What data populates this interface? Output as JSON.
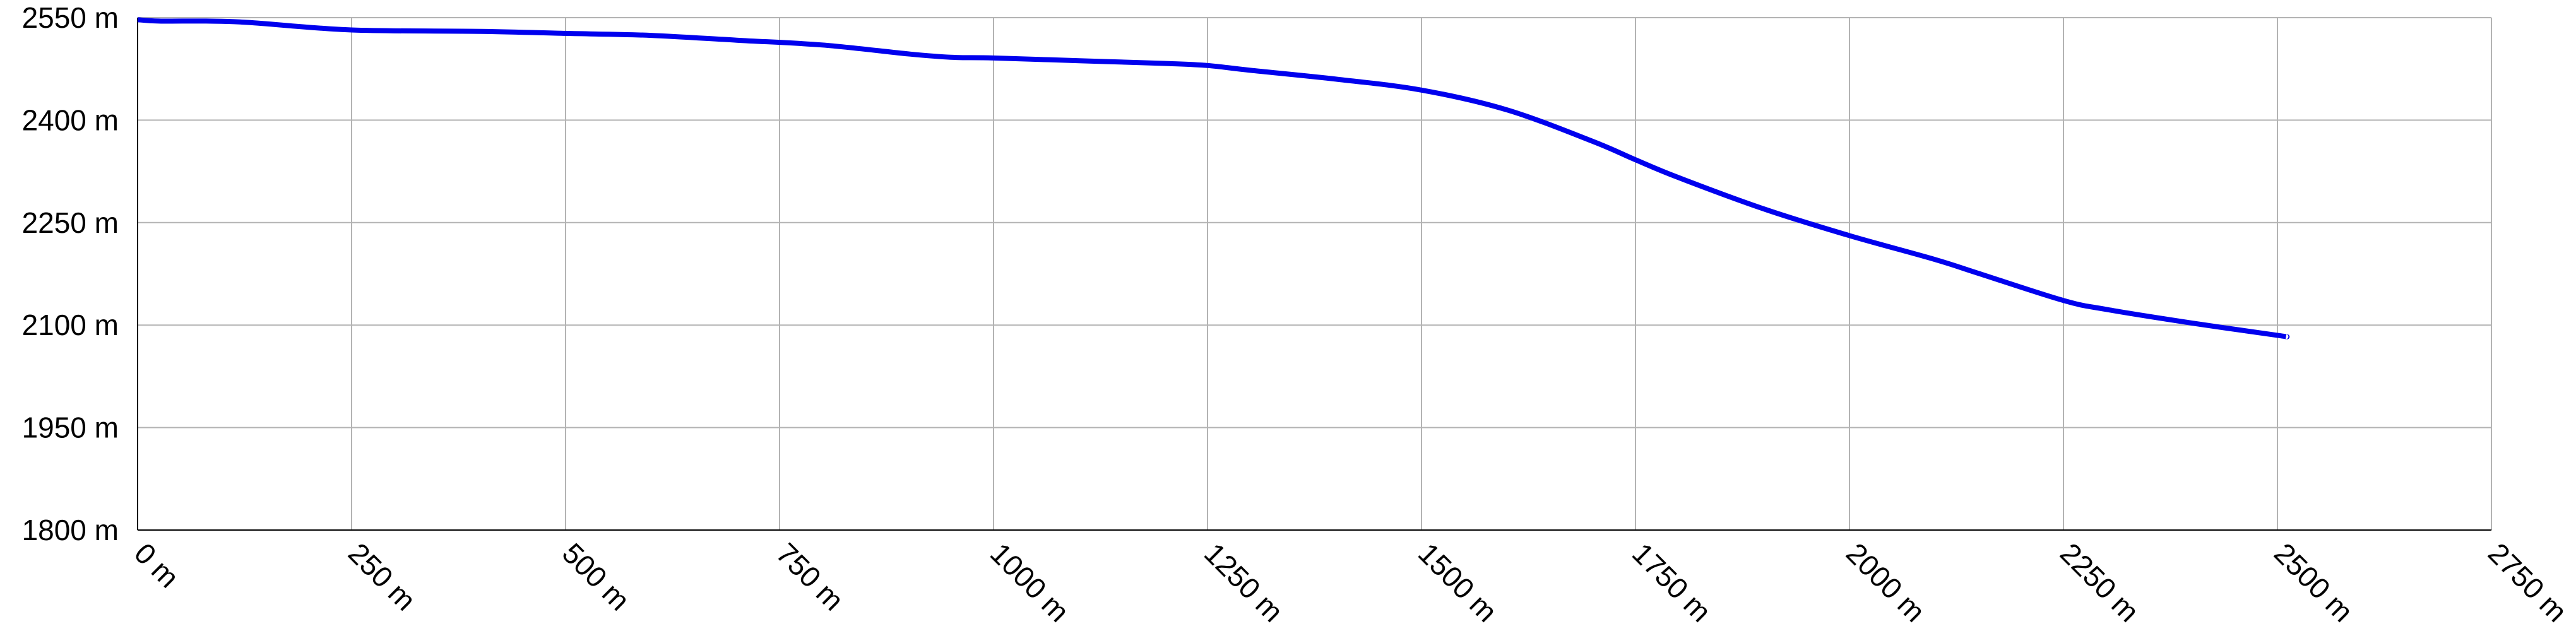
{
  "chart_data": {
    "type": "line",
    "title": "",
    "xlabel": "",
    "ylabel": "",
    "x_unit": "m",
    "y_unit": "m",
    "xlim": [
      0,
      2750
    ],
    "ylim": [
      1800,
      2550
    ],
    "x_ticks": [
      "0 m",
      "250 m",
      "500 m",
      "750 m",
      "1000 m",
      "1250 m",
      "1500 m",
      "1750 m",
      "2000 m",
      "2250 m",
      "2500 m",
      "2750 m"
    ],
    "y_ticks": [
      "1800 m",
      "1950 m",
      "2100 m",
      "2250 m",
      "2400 m",
      "2550 m"
    ],
    "x_tick_values": [
      0,
      250,
      500,
      750,
      1000,
      1250,
      1500,
      1750,
      2000,
      2250,
      2500,
      2750
    ],
    "y_tick_values": [
      1800,
      1950,
      2100,
      2250,
      2400,
      2550
    ],
    "grid": true,
    "colors": {
      "line": "#0000ee",
      "grid": "#b3b3b3",
      "axis": "#000000"
    },
    "series": [
      {
        "x": [
          0,
          25,
          80,
          130,
          250,
          400,
          500,
          600,
          700,
          800,
          900,
          950,
          1000,
          1100,
          1200,
          1250,
          1300,
          1400,
          1500,
          1600,
          1700,
          1750,
          1800,
          1900,
          2000,
          2100,
          2150,
          2250,
          2300,
          2400,
          2500,
          2510
        ],
        "y": [
          2547,
          2545,
          2545,
          2543,
          2532,
          2530,
          2527,
          2524,
          2517,
          2510,
          2497,
          2492,
          2491,
          2487,
          2483,
          2480,
          2473,
          2460,
          2444,
          2415,
          2369,
          2342,
          2316,
          2270,
          2231,
          2196,
          2176,
          2136,
          2123,
          2103,
          2085,
          2083
        ]
      }
    ]
  }
}
